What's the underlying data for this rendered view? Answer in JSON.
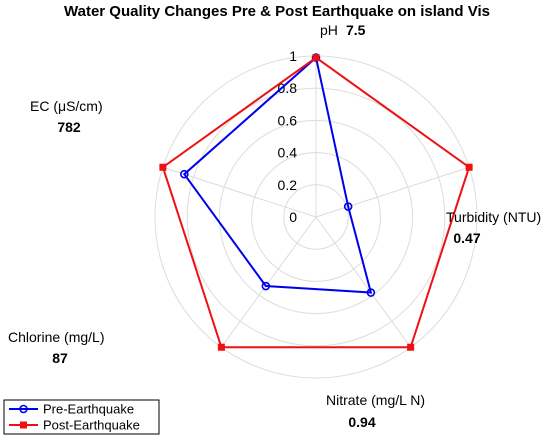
{
  "chart_data": {
    "type": "radar",
    "title": "Water Quality Changes Pre & Post Earthquake on island Vis",
    "radial_ticks": [
      "0",
      "0.2",
      "0.4",
      "0.6",
      "0.8",
      "1"
    ],
    "radial_range": [
      0,
      1
    ],
    "grid": true,
    "axes": [
      {
        "label": "pH",
        "max_label": "7.5"
      },
      {
        "label": "Turbidity (NTU)",
        "max_label": "0.47"
      },
      {
        "label": "Nitrate (mg/L N)",
        "max_label": "0.94"
      },
      {
        "label": "Chlorine (mg/L)",
        "max_label": "87"
      },
      {
        "label": "EC (μS/cm)",
        "max_label": "782"
      }
    ],
    "series": [
      {
        "name": "Pre-Earthquake",
        "color": "#0000ee",
        "marker": "circle",
        "values": [
          0.99,
          0.21,
          0.58,
          0.53,
          0.86
        ]
      },
      {
        "name": "Post-Earthquake",
        "color": "#ee1111",
        "marker": "square",
        "values": [
          0.99,
          1.0,
          1.0,
          1.0,
          1.0
        ]
      }
    ],
    "legend": {
      "position": "bottom-left"
    }
  }
}
